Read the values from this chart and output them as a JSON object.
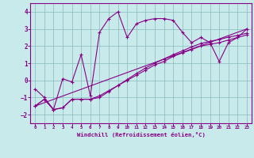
{
  "bg_color": "#c8eaea",
  "line_color": "#880088",
  "xlim": [
    -0.5,
    23.5
  ],
  "ylim": [
    -2.5,
    4.5
  ],
  "xticks": [
    0,
    1,
    2,
    3,
    4,
    5,
    6,
    7,
    8,
    9,
    10,
    11,
    12,
    13,
    14,
    15,
    16,
    17,
    18,
    19,
    20,
    21,
    22,
    23
  ],
  "yticks": [
    -2,
    -1,
    0,
    1,
    2,
    3,
    4
  ],
  "xlabel": "Windchill (Refroidissement éolien,°C)",
  "series1": {
    "x": [
      0,
      1,
      2,
      3,
      4,
      5,
      6,
      7,
      8,
      9,
      10,
      11,
      12,
      13,
      14,
      15,
      16,
      17,
      18,
      19,
      20,
      21,
      22,
      23
    ],
    "y": [
      -0.5,
      -1.0,
      -1.7,
      0.1,
      -0.1,
      1.5,
      -0.9,
      2.8,
      3.6,
      4.0,
      2.5,
      3.3,
      3.5,
      3.6,
      3.6,
      3.5,
      2.8,
      2.2,
      2.5,
      2.2,
      1.1,
      2.2,
      2.5,
      3.0
    ]
  },
  "series2": {
    "x": [
      0,
      23
    ],
    "y": [
      -1.5,
      3.0
    ]
  },
  "series3": {
    "x": [
      0,
      1,
      2,
      3,
      4,
      5,
      6,
      7,
      8,
      9,
      10,
      11,
      12,
      13,
      14,
      15,
      16,
      17,
      18,
      19,
      20,
      21,
      22,
      23
    ],
    "y": [
      -1.5,
      -1.1,
      -1.7,
      -1.6,
      -1.1,
      -1.1,
      -1.1,
      -0.9,
      -0.6,
      -0.3,
      0.0,
      0.3,
      0.6,
      0.9,
      1.1,
      1.4,
      1.6,
      1.8,
      2.0,
      2.1,
      2.2,
      2.35,
      2.5,
      2.65
    ]
  },
  "series4": {
    "x": [
      0,
      1,
      2,
      3,
      4,
      5,
      6,
      7,
      8,
      9,
      10,
      11,
      12,
      13,
      14,
      15,
      16,
      17,
      18,
      19,
      20,
      21,
      22,
      23
    ],
    "y": [
      -1.5,
      -1.1,
      -1.7,
      -1.6,
      -1.1,
      -1.1,
      -1.1,
      -1.0,
      -0.65,
      -0.3,
      0.05,
      0.4,
      0.72,
      1.0,
      1.25,
      1.5,
      1.72,
      1.95,
      2.15,
      2.28,
      2.38,
      2.52,
      2.62,
      2.75
    ]
  }
}
